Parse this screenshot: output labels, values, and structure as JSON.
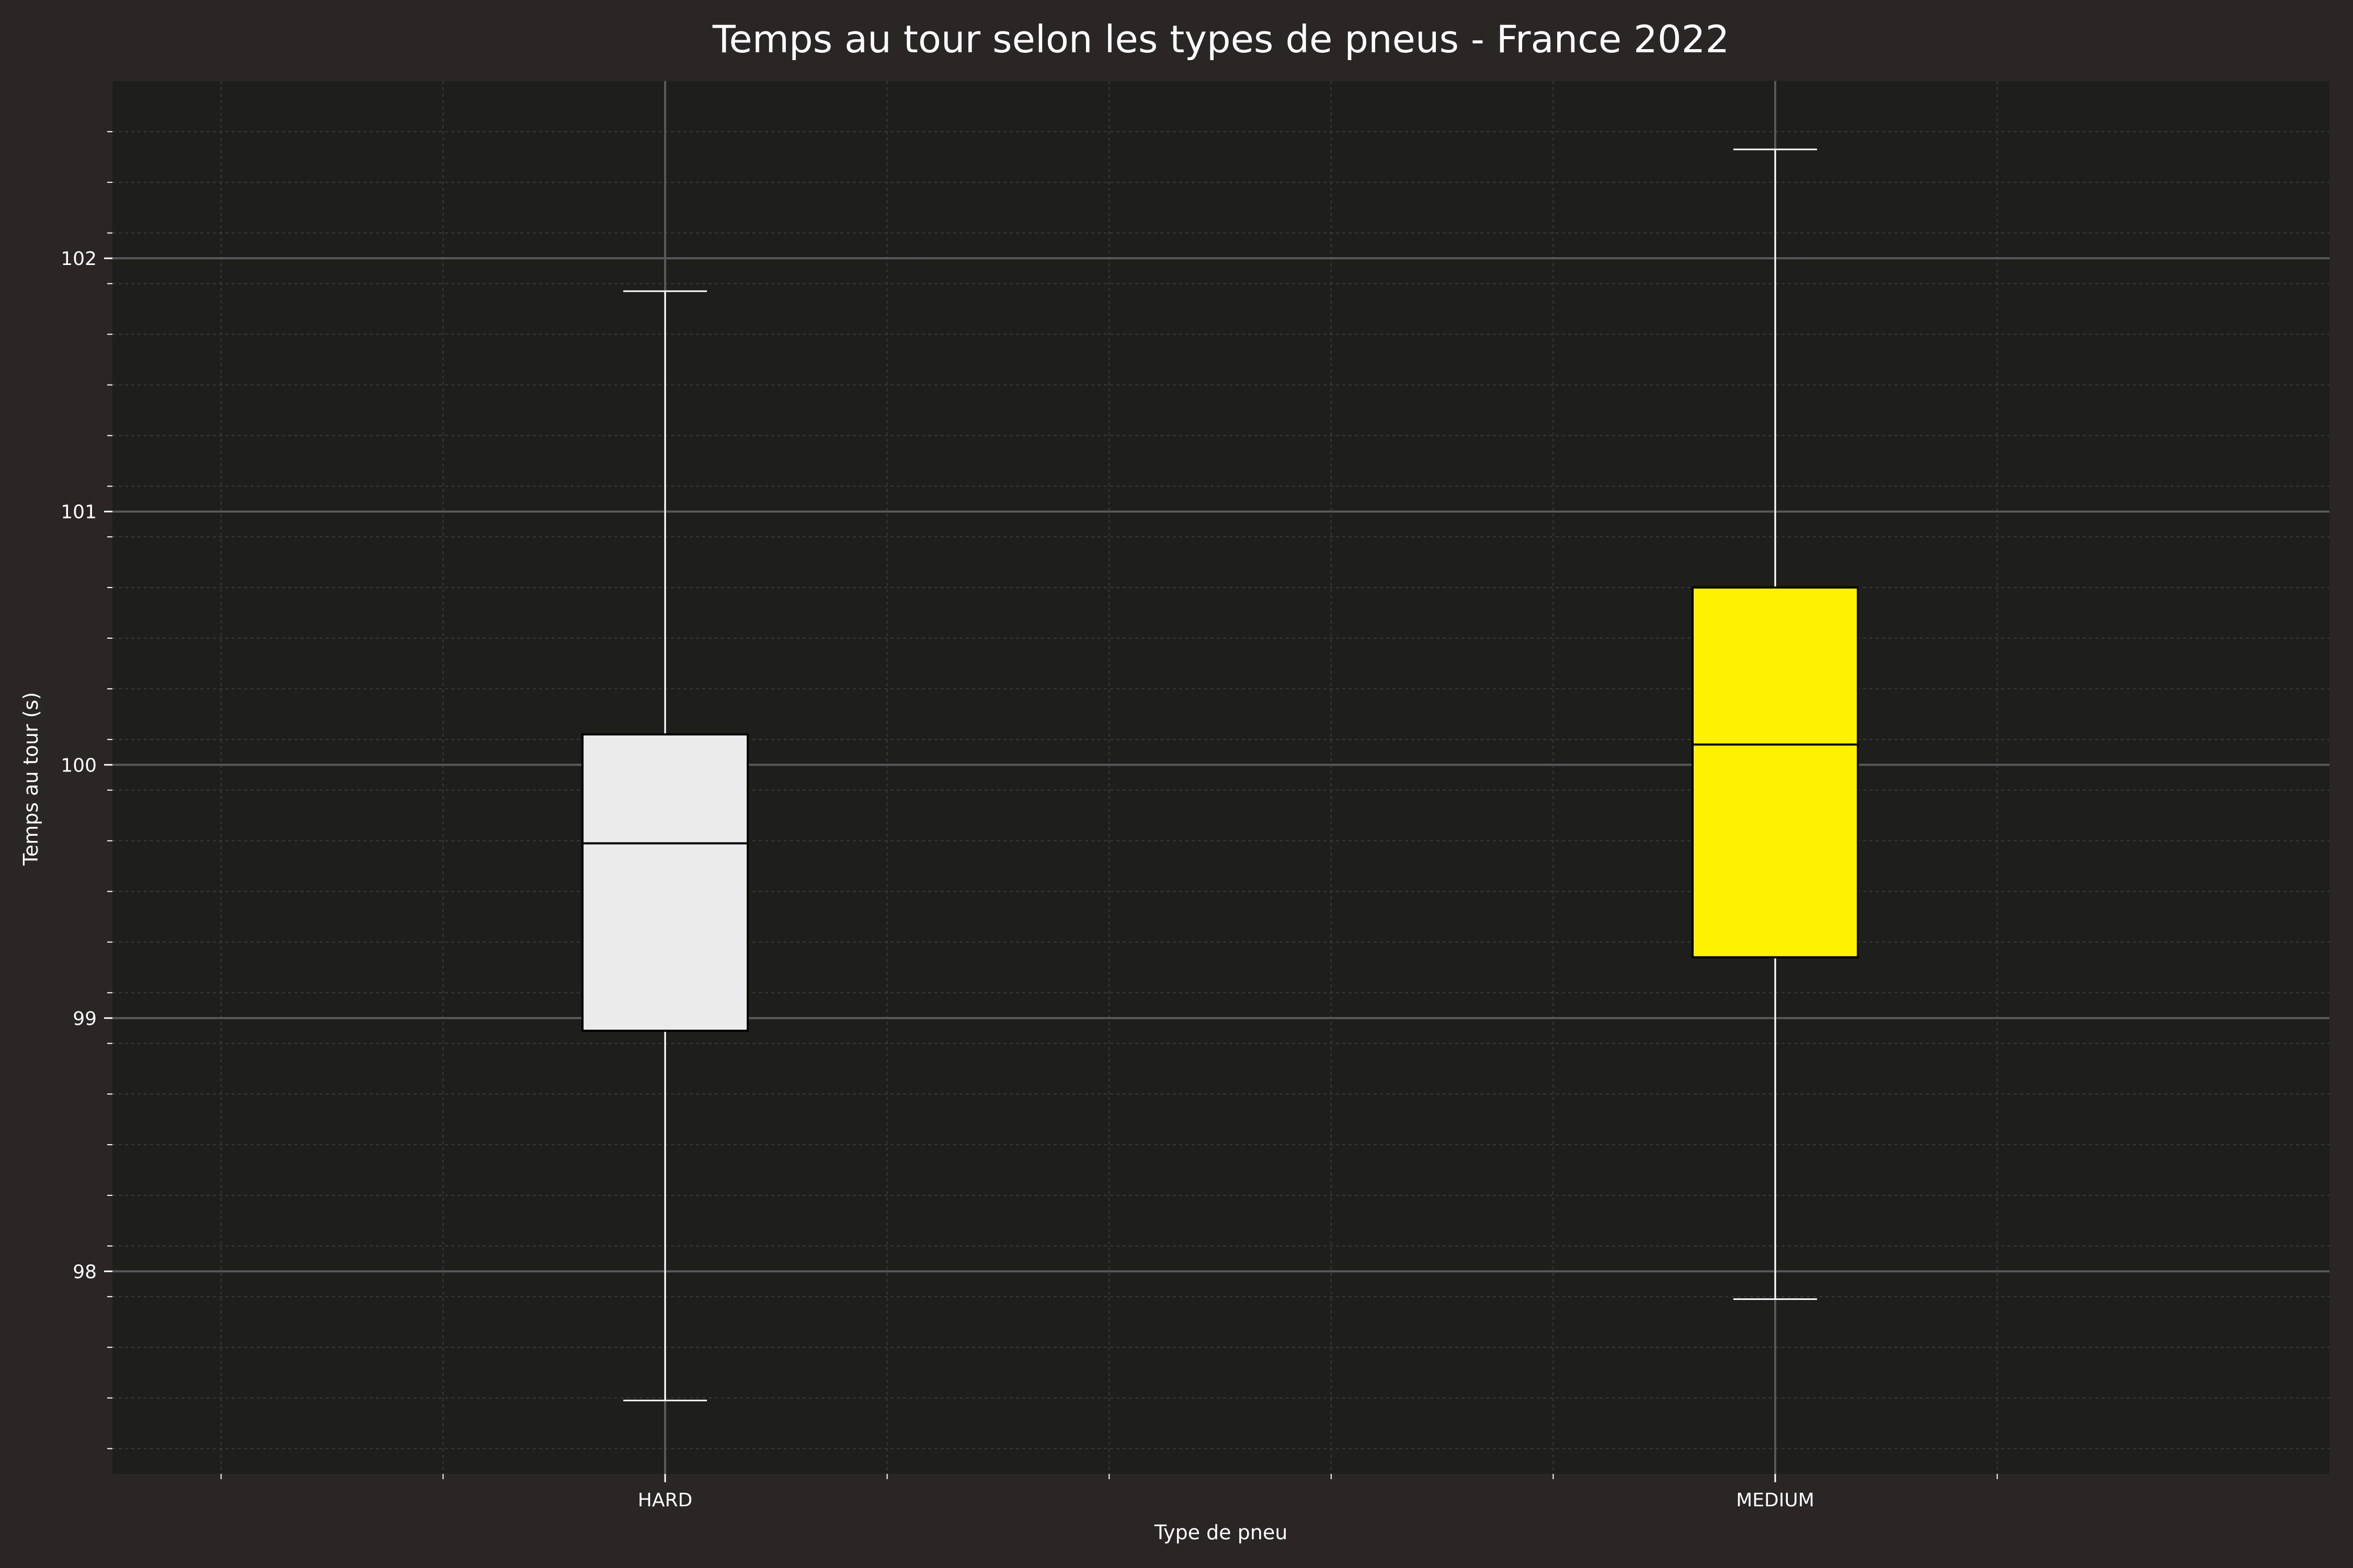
{
  "chart_data": {
    "type": "boxplot",
    "title": "Temps au tour selon les types de pneus - France 2022",
    "xlabel": "Type de pneu",
    "ylabel": "Temps au tour (s)",
    "ylim": [
      97.2,
      102.7
    ],
    "yticks": [
      "98",
      "99",
      "100",
      "101",
      "102"
    ],
    "grid": true,
    "categories": [
      "HARD",
      "MEDIUM"
    ],
    "boxes": [
      {
        "category": "HARD",
        "whisker_low": 97.49,
        "q1": 98.95,
        "median": 99.69,
        "q3": 100.12,
        "whisker_high": 101.87,
        "color": "#EBEBEB"
      },
      {
        "category": "MEDIUM",
        "whisker_low": 97.89,
        "q1": 99.24,
        "median": 100.08,
        "q3": 100.7,
        "whisker_high": 102.43,
        "color": "#FFF200"
      }
    ]
  },
  "colors": {
    "background": "#292625",
    "plot_background": "#1E1E1C",
    "text": "#FFFFFF",
    "grid_major": "#595959",
    "grid_minor": "#3A3A3A",
    "whisker": "#FFFFFF",
    "box_edge": "#000000"
  }
}
